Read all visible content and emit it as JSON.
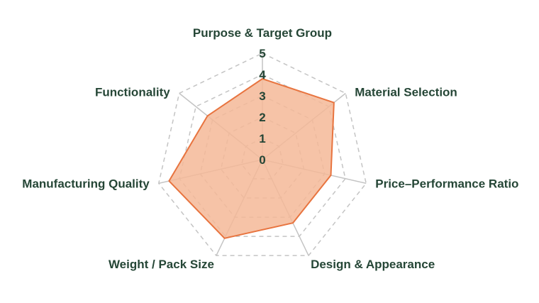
{
  "chart_data": {
    "type": "radar",
    "axes": [
      "Purpose & Target Group",
      "Material Selection",
      "Price–Performance Ratio",
      "Design & Appearance",
      "Weight / Pack Size",
      "Manufacturing Quality",
      "Functionality"
    ],
    "values": [
      3.8,
      4.3,
      3.3,
      3.3,
      4.1,
      4.5,
      3.3
    ],
    "rlim": [
      0,
      5
    ],
    "ticks": [
      "0",
      "1",
      "2",
      "3",
      "4",
      "5"
    ],
    "grid": true,
    "colors": {
      "fill": "#f4b998",
      "line": "#e8743f",
      "grid": "#c4c4c4",
      "text": "#254636"
    }
  }
}
